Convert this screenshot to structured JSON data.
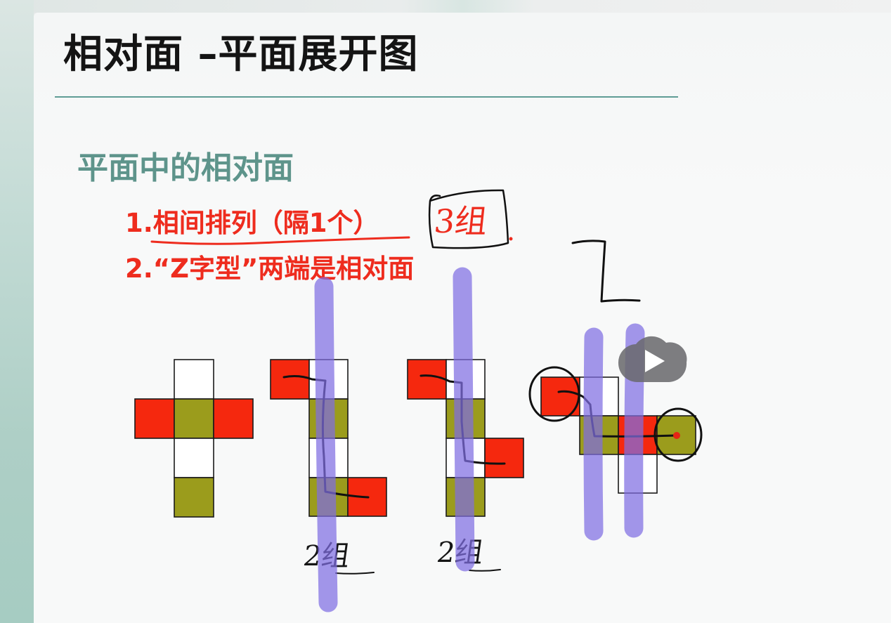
{
  "slide": {
    "title": "相对面 –平面展开图",
    "subtitle": "平面中的相对面",
    "rules": [
      "1.相间排列（隔1个）",
      "2.“Z字型”两端是相对面"
    ]
  },
  "handwritten": {
    "rule1_count": "3组",
    "net2_count": "2组",
    "net3_count": "2组"
  },
  "player": {
    "play_icon": "play-icon"
  },
  "colors": {
    "red": "#f5280e",
    "olive": "#9b9c1c",
    "accent": "#5e948b",
    "rule_text": "#ee2c1e",
    "pen": "#111111",
    "marker": "rgba(128,110,226,0.72)"
  }
}
